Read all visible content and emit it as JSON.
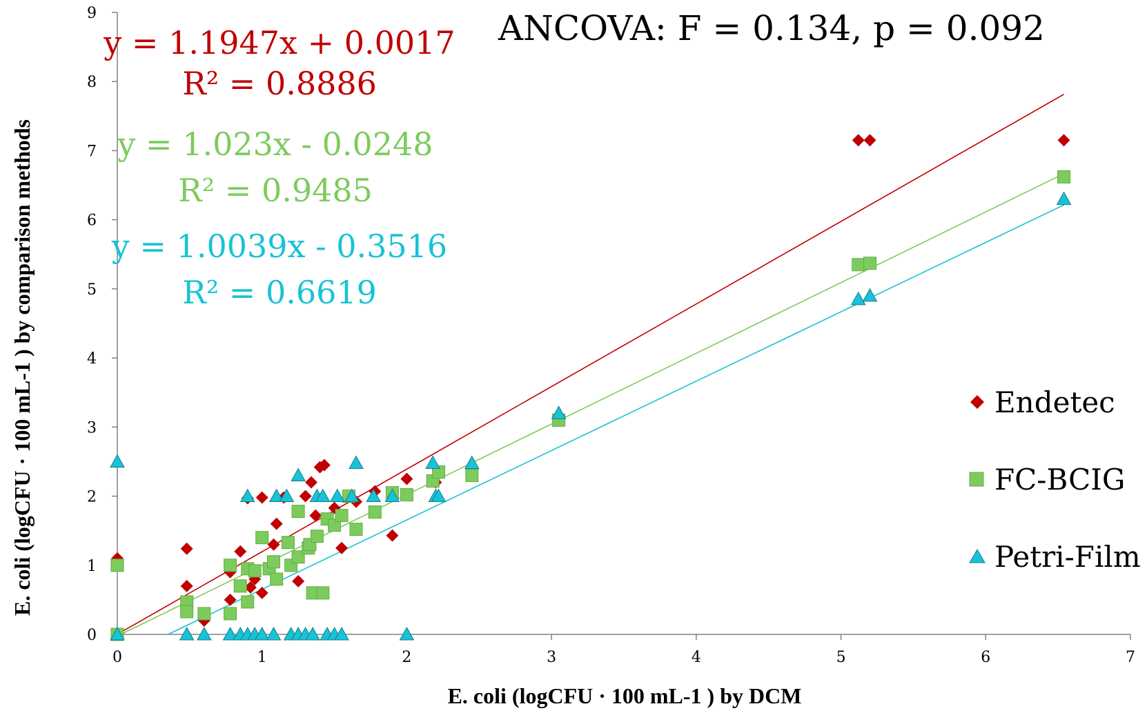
{
  "chart_data": {
    "type": "scatter",
    "xlabel": "E. coli (logCFU · 100 mL-1 ) by DCM",
    "ylabel": "E. coli (logCFU · 100 mL-1 ) by comparison methods",
    "xlim": [
      0,
      7
    ],
    "ylim": [
      0,
      9
    ],
    "x_ticks": [
      "0",
      "1",
      "2",
      "3",
      "4",
      "5",
      "6",
      "7"
    ],
    "y_ticks": [
      "0",
      "1",
      "2",
      "3",
      "4",
      "5",
      "6",
      "7",
      "8",
      "9"
    ],
    "grid": false,
    "legend_position": "right",
    "annotation": "ANCOVA: F = 0.134, p = 0.092",
    "series": [
      {
        "name": "Endetec",
        "color": "#c00000",
        "marker": "diamond",
        "equation": "y = 1.1947x + 0.0017",
        "r2_text": "R² = 0.8886",
        "trend": {
          "slope": 1.1947,
          "intercept": 0.0017,
          "x_range": [
            0,
            6.54
          ]
        },
        "points": [
          [
            0,
            1.1
          ],
          [
            0,
            0
          ],
          [
            0.48,
            1.24
          ],
          [
            0.48,
            0.7
          ],
          [
            0.6,
            0.2
          ],
          [
            0.78,
            0.9
          ],
          [
            0.78,
            0.5
          ],
          [
            0.85,
            1.2
          ],
          [
            0.9,
            1.97
          ],
          [
            0.92,
            0.68
          ],
          [
            0.95,
            0.8
          ],
          [
            1.0,
            1.98
          ],
          [
            1.0,
            0.6
          ],
          [
            1.08,
            1.3
          ],
          [
            1.1,
            1.6
          ],
          [
            1.15,
            1.98
          ],
          [
            1.25,
            0.77
          ],
          [
            1.3,
            2.0
          ],
          [
            1.34,
            2.2
          ],
          [
            1.37,
            1.72
          ],
          [
            1.4,
            2.42
          ],
          [
            1.43,
            2.45
          ],
          [
            1.5,
            1.83
          ],
          [
            1.55,
            1.25
          ],
          [
            1.65,
            1.92
          ],
          [
            1.78,
            2.07
          ],
          [
            1.9,
            1.43
          ],
          [
            2.0,
            2.25
          ],
          [
            2.2,
            2.2
          ],
          [
            5.12,
            7.15
          ],
          [
            5.2,
            7.15
          ],
          [
            6.54,
            7.15
          ]
        ]
      },
      {
        "name": "FC-BCIG",
        "color": "#7dcb5c",
        "marker": "square",
        "equation": "y = 1.023x - 0.0248",
        "r2_text": "R² = 0.9485",
        "trend": {
          "slope": 1.023,
          "intercept": -0.0248,
          "x_range": [
            0,
            6.54
          ]
        },
        "points": [
          [
            0,
            1.0
          ],
          [
            0,
            0
          ],
          [
            0.48,
            0.47
          ],
          [
            0.48,
            0.33
          ],
          [
            0.6,
            0.3
          ],
          [
            0.78,
            1.0
          ],
          [
            0.78,
            0.3
          ],
          [
            0.85,
            0.7
          ],
          [
            0.9,
            0.95
          ],
          [
            0.9,
            0.47
          ],
          [
            0.95,
            0.92
          ],
          [
            1.0,
            1.4
          ],
          [
            1.05,
            0.95
          ],
          [
            1.08,
            1.05
          ],
          [
            1.1,
            0.8
          ],
          [
            1.18,
            1.33
          ],
          [
            1.2,
            1.0
          ],
          [
            1.25,
            1.78
          ],
          [
            1.25,
            1.12
          ],
          [
            1.32,
            1.25
          ],
          [
            1.33,
            1.3
          ],
          [
            1.35,
            0.6
          ],
          [
            1.38,
            1.42
          ],
          [
            1.42,
            0.6
          ],
          [
            1.45,
            1.67
          ],
          [
            1.5,
            1.58
          ],
          [
            1.55,
            1.72
          ],
          [
            1.6,
            2.0
          ],
          [
            1.65,
            1.52
          ],
          [
            1.78,
            1.77
          ],
          [
            1.9,
            2.05
          ],
          [
            2.0,
            2.02
          ],
          [
            2.18,
            2.22
          ],
          [
            2.22,
            2.35
          ],
          [
            2.45,
            2.3
          ],
          [
            3.05,
            3.1
          ],
          [
            5.12,
            5.35
          ],
          [
            5.2,
            5.37
          ],
          [
            6.54,
            6.62
          ]
        ]
      },
      {
        "name": "Petri-Film",
        "color": "#17c3d6",
        "marker": "triangle",
        "equation": "y = 1.0039x - 0.3516",
        "r2_text": "R² = 0.6619",
        "trend": {
          "slope": 1.0039,
          "intercept": -0.3516,
          "x_range": [
            0.35,
            6.54
          ]
        },
        "points": [
          [
            0,
            2.5
          ],
          [
            0,
            0
          ],
          [
            0.48,
            0
          ],
          [
            0.6,
            0
          ],
          [
            0.78,
            0
          ],
          [
            0.85,
            0
          ],
          [
            0.9,
            0
          ],
          [
            0.9,
            2.0
          ],
          [
            0.95,
            0
          ],
          [
            1.0,
            0
          ],
          [
            1.08,
            0
          ],
          [
            1.1,
            2.0
          ],
          [
            1.17,
            2.0
          ],
          [
            1.2,
            0
          ],
          [
            1.25,
            0
          ],
          [
            1.25,
            2.3
          ],
          [
            1.3,
            0
          ],
          [
            1.35,
            0
          ],
          [
            1.38,
            2.0
          ],
          [
            1.42,
            2.0
          ],
          [
            1.45,
            0
          ],
          [
            1.5,
            0
          ],
          [
            1.52,
            2.0
          ],
          [
            1.55,
            0
          ],
          [
            1.62,
            2.0
          ],
          [
            1.65,
            2.48
          ],
          [
            1.77,
            2.0
          ],
          [
            1.9,
            2.0
          ],
          [
            2.0,
            0
          ],
          [
            2.18,
            2.48
          ],
          [
            2.2,
            2.0
          ],
          [
            2.22,
            2.0
          ],
          [
            2.45,
            2.48
          ],
          [
            3.05,
            3.2
          ],
          [
            5.12,
            4.85
          ],
          [
            5.2,
            4.9
          ],
          [
            6.54,
            6.3
          ]
        ]
      }
    ]
  }
}
